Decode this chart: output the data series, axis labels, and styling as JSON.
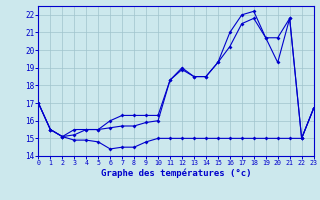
{
  "bg_color": "#cce8ed",
  "grid_color": "#a0c4cc",
  "line_color": "#0000cc",
  "xlabel": "Graphe des températures (°c)",
  "xlim": [
    0,
    23
  ],
  "ylim": [
    14,
    22.5
  ],
  "yticks": [
    14,
    15,
    16,
    17,
    18,
    19,
    20,
    21,
    22
  ],
  "xticks": [
    0,
    1,
    2,
    3,
    4,
    5,
    6,
    7,
    8,
    9,
    10,
    11,
    12,
    13,
    14,
    15,
    16,
    17,
    18,
    19,
    20,
    21,
    22,
    23
  ],
  "series1_x": [
    0,
    1,
    2,
    3,
    4,
    5,
    6,
    7,
    8,
    9,
    10,
    11,
    12,
    13,
    14,
    15,
    16,
    17,
    18,
    19,
    20,
    21,
    22,
    23
  ],
  "series1_y": [
    17.0,
    15.5,
    15.1,
    14.9,
    14.9,
    14.8,
    14.4,
    14.5,
    14.5,
    14.8,
    15.0,
    15.0,
    15.0,
    15.0,
    15.0,
    15.0,
    15.0,
    15.0,
    15.0,
    15.0,
    15.0,
    15.0,
    15.0,
    16.7
  ],
  "series2_x": [
    0,
    1,
    2,
    3,
    4,
    5,
    6,
    7,
    8,
    9,
    10,
    11,
    12,
    13,
    14,
    15,
    16,
    17,
    18,
    19,
    20,
    21,
    22,
    23
  ],
  "series2_y": [
    17.0,
    15.5,
    15.1,
    15.2,
    15.5,
    15.5,
    15.6,
    15.7,
    15.7,
    15.9,
    16.0,
    18.3,
    18.9,
    18.5,
    18.5,
    19.3,
    20.2,
    21.5,
    21.8,
    20.7,
    20.7,
    21.8,
    15.0,
    16.7
  ],
  "series3_x": [
    0,
    1,
    2,
    3,
    4,
    5,
    6,
    7,
    8,
    9,
    10,
    11,
    12,
    13,
    14,
    15,
    16,
    17,
    18,
    19,
    20,
    21,
    22,
    23
  ],
  "series3_y": [
    17.0,
    15.5,
    15.1,
    15.5,
    15.5,
    15.5,
    16.0,
    16.3,
    16.3,
    16.3,
    16.3,
    18.3,
    19.0,
    18.5,
    18.5,
    19.3,
    21.0,
    22.0,
    22.2,
    20.7,
    19.3,
    21.8,
    15.0,
    16.7
  ]
}
